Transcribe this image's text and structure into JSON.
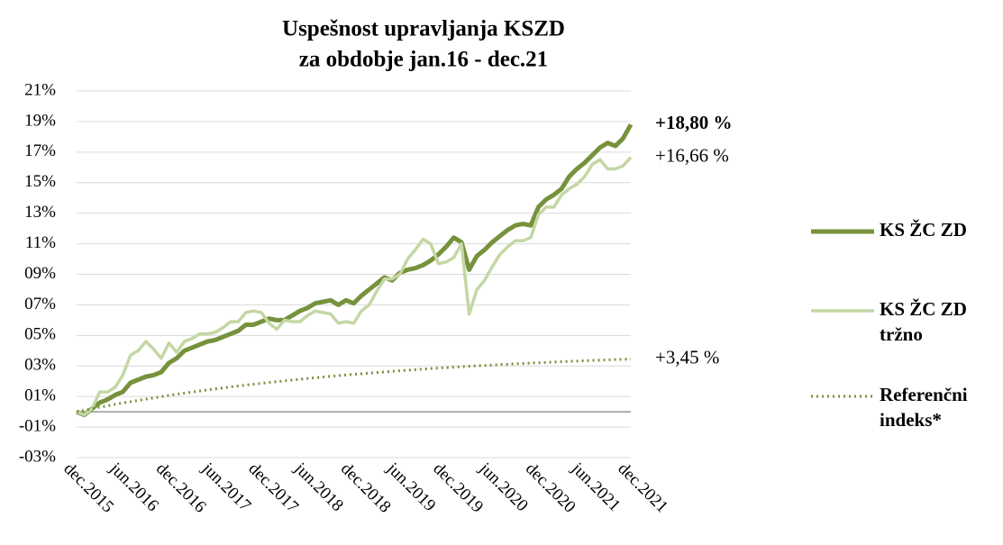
{
  "chart_data": {
    "type": "line",
    "title": "Uspešnost upravljanja KSZD",
    "subtitle": "za obdobje jan.16 - dec.21",
    "categories": [
      "dec.2015",
      null,
      null,
      null,
      null,
      null,
      "jun.2016",
      null,
      null,
      null,
      null,
      null,
      "dec.2016",
      null,
      null,
      null,
      null,
      null,
      "jun.2017",
      null,
      null,
      null,
      null,
      null,
      "dec.2017",
      null,
      null,
      null,
      null,
      null,
      "jun.2018",
      null,
      null,
      null,
      null,
      null,
      "dec.2018",
      null,
      null,
      null,
      null,
      null,
      "jun.2019",
      null,
      null,
      null,
      null,
      null,
      "dec.2019",
      null,
      null,
      null,
      null,
      null,
      "jun.2020",
      null,
      null,
      null,
      null,
      null,
      "dec.2020",
      null,
      null,
      null,
      null,
      null,
      "jun.2021",
      null,
      null,
      null,
      null,
      null,
      "dec.2021"
    ],
    "series": [
      {
        "name": "KS ŽC ZD",
        "color": "#76923c",
        "width": 5,
        "dash": "solid",
        "end_label": "+18,80 %",
        "values": [
          0,
          -0.2,
          0.2,
          0.6,
          0.8,
          1.1,
          1.3,
          1.9,
          2.1,
          2.3,
          2.4,
          2.6,
          3.2,
          3.5,
          4.0,
          4.2,
          4.4,
          4.6,
          4.7,
          4.9,
          5.1,
          5.3,
          5.7,
          5.7,
          5.9,
          6.1,
          6.0,
          6.0,
          6.3,
          6.6,
          6.8,
          7.1,
          7.2,
          7.3,
          7.0,
          7.3,
          7.1,
          7.6,
          8.0,
          8.4,
          8.8,
          8.6,
          9.1,
          9.3,
          9.4,
          9.6,
          9.9,
          10.3,
          10.8,
          11.4,
          11.1,
          9.3,
          10.2,
          10.6,
          11.1,
          11.5,
          11.9,
          12.2,
          12.3,
          12.2,
          13.4,
          13.9,
          14.2,
          14.6,
          15.4,
          15.9,
          16.3,
          16.8,
          17.3,
          17.6,
          17.4,
          17.9,
          18.8
        ]
      },
      {
        "name": "KS ŽC ZD tržno",
        "color": "#c4d7a4",
        "width": 3.5,
        "dash": "solid",
        "end_label": "+16,66 %",
        "values": [
          0,
          -0.2,
          0.2,
          1.3,
          1.3,
          1.6,
          2.4,
          3.7,
          4.0,
          4.6,
          4.1,
          3.5,
          4.5,
          3.9,
          4.6,
          4.8,
          5.1,
          5.1,
          5.2,
          5.5,
          5.9,
          5.9,
          6.5,
          6.6,
          6.5,
          5.8,
          5.4,
          6.0,
          5.9,
          5.9,
          6.3,
          6.6,
          6.5,
          6.4,
          5.8,
          5.9,
          5.8,
          6.6,
          7.0,
          7.9,
          8.7,
          8.7,
          9.0,
          10.0,
          10.6,
          11.3,
          11.0,
          9.7,
          9.8,
          10.1,
          11.0,
          6.4,
          8.0,
          8.6,
          9.5,
          10.3,
          10.8,
          11.2,
          11.2,
          11.4,
          12.9,
          13.4,
          13.4,
          14.2,
          14.6,
          14.9,
          15.4,
          16.2,
          16.5,
          15.9,
          15.9,
          16.1,
          16.66
        ]
      },
      {
        "name": "Referenčni indeks*",
        "color": "#76923c",
        "width": 3,
        "dash": "dotted",
        "end_label": "+3,45 %",
        "values": [
          0,
          0.1,
          0.2,
          0.3,
          0.39,
          0.49,
          0.58,
          0.66,
          0.75,
          0.83,
          0.91,
          0.99,
          1.07,
          1.15,
          1.22,
          1.29,
          1.36,
          1.43,
          1.5,
          1.56,
          1.63,
          1.69,
          1.75,
          1.81,
          1.86,
          1.92,
          1.97,
          2.03,
          2.08,
          2.13,
          2.18,
          2.23,
          2.28,
          2.32,
          2.37,
          2.41,
          2.45,
          2.49,
          2.53,
          2.57,
          2.61,
          2.65,
          2.69,
          2.72,
          2.76,
          2.79,
          2.83,
          2.86,
          2.89,
          2.92,
          2.95,
          2.98,
          3.01,
          3.03,
          3.06,
          3.09,
          3.11,
          3.14,
          3.16,
          3.19,
          3.21,
          3.23,
          3.26,
          3.28,
          3.3,
          3.32,
          3.34,
          3.36,
          3.38,
          3.4,
          3.42,
          3.43,
          3.45
        ]
      }
    ],
    "ylim": [
      -3,
      21
    ],
    "yticks": [
      {
        "value": -3,
        "label": "-03%"
      },
      {
        "value": -1,
        "label": "-01%"
      },
      {
        "value": 1,
        "label": "01%"
      },
      {
        "value": 3,
        "label": "03%"
      },
      {
        "value": 5,
        "label": "05%"
      },
      {
        "value": 7,
        "label": "07%"
      },
      {
        "value": 9,
        "label": "09%"
      },
      {
        "value": 11,
        "label": "11%"
      },
      {
        "value": 13,
        "label": "13%"
      },
      {
        "value": 15,
        "label": "15%"
      },
      {
        "value": 17,
        "label": "17%"
      },
      {
        "value": 19,
        "label": "19%"
      },
      {
        "value": 21,
        "label": "21%"
      }
    ],
    "grid": true,
    "legend": "right"
  }
}
